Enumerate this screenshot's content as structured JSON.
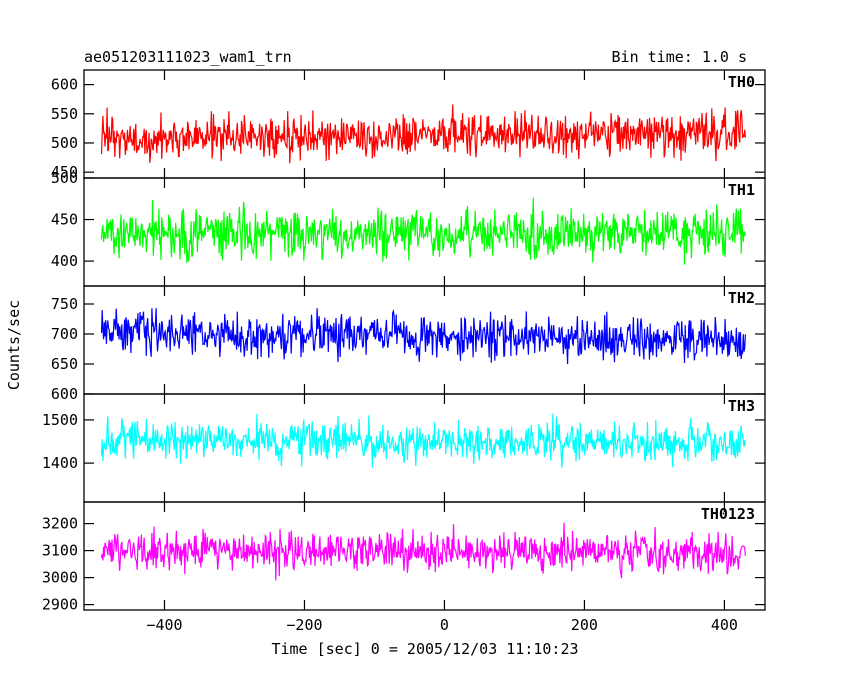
{
  "header": {
    "left_title": "ae051203111023_wam1_trn",
    "right_title": "Bin time: 1.0 s"
  },
  "chart_data": {
    "type": "line",
    "xlabel": "Time [sec] 0 = 2005/12/03 11:10:23",
    "ylabel": "Counts/sec",
    "xlim": [
      -515,
      458
    ],
    "x_range": [
      -490,
      430
    ],
    "x_ticks": [
      -400,
      -200,
      0,
      200,
      400
    ],
    "x_tick_labels": [
      "−400",
      "−200",
      "0",
      "200",
      "400"
    ],
    "panels": [
      {
        "name": "TH0",
        "color": "#ff0000",
        "ylim": [
          440,
          625
        ],
        "y_ticks": [
          450,
          500,
          550,
          600
        ],
        "y_tick_labels": [
          "450",
          "500",
          "550",
          "600"
        ],
        "mean_start": 505,
        "mean_end": 520,
        "spread": 30,
        "seed": 11
      },
      {
        "name": "TH1",
        "color": "#00ff00",
        "ylim": [
          370,
          500
        ],
        "y_ticks": [
          400,
          450,
          500
        ],
        "y_tick_labels": [
          "400",
          "450",
          "500"
        ],
        "mean_start": 432,
        "mean_end": 435,
        "spread": 24,
        "seed": 23
      },
      {
        "name": "TH2",
        "color": "#0000ff",
        "ylim": [
          600,
          780
        ],
        "y_ticks": [
          600,
          650,
          700,
          750
        ],
        "y_tick_labels": [
          "600",
          "650",
          "700",
          "750"
        ],
        "mean_start": 705,
        "mean_end": 690,
        "spread": 30,
        "seed": 37
      },
      {
        "name": "TH3",
        "color": "#00ffff",
        "ylim": [
          1310,
          1560
        ],
        "y_ticks": [
          1400,
          1500
        ],
        "y_tick_labels": [
          "1400",
          "1500"
        ],
        "mean_start": 1455,
        "mean_end": 1448,
        "spread": 38,
        "seed": 51
      },
      {
        "name": "TH0123",
        "color": "#ff00ff",
        "ylim": [
          2880,
          3280
        ],
        "y_ticks": [
          2900,
          3000,
          3100,
          3200
        ],
        "y_tick_labels": [
          "2900",
          "3000",
          "3100",
          "3200"
        ],
        "mean_start": 3100,
        "mean_end": 3095,
        "spread": 60,
        "seed": 73
      }
    ]
  }
}
